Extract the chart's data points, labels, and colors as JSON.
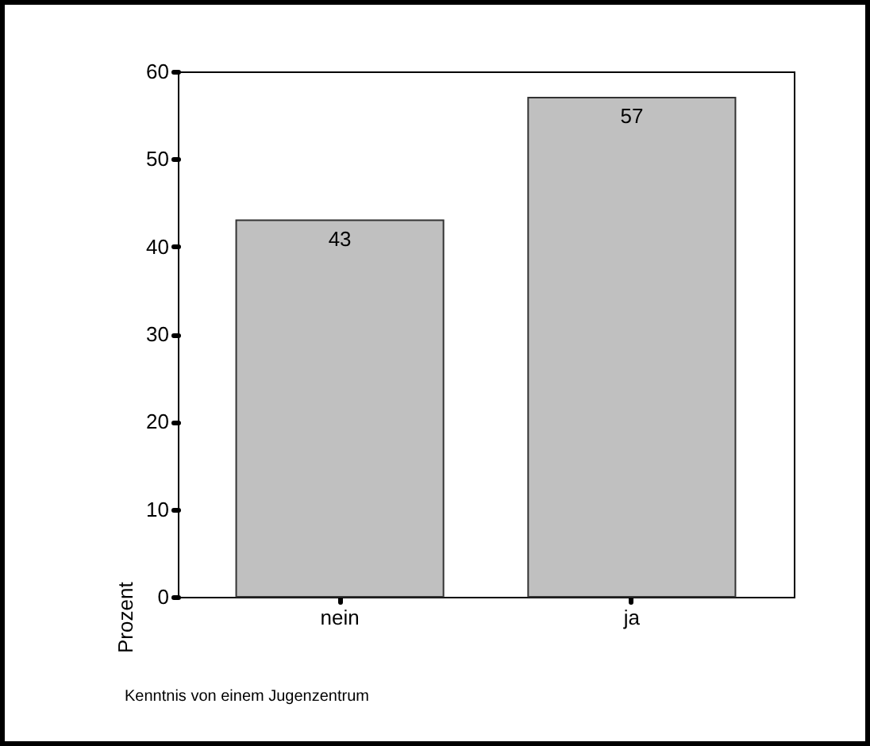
{
  "chart_data": {
    "type": "bar",
    "xlabel": "Kenntnis von einem Jugenzentrum",
    "ylabel": "Prozent",
    "categories": [
      "nein",
      "ja"
    ],
    "values": [
      43,
      57
    ],
    "color": "#c0c0c0",
    "ylim": [
      0,
      60
    ],
    "yticks": [
      0,
      10,
      20,
      30,
      40,
      50,
      60
    ],
    "grid": false,
    "data_labels": true
  }
}
